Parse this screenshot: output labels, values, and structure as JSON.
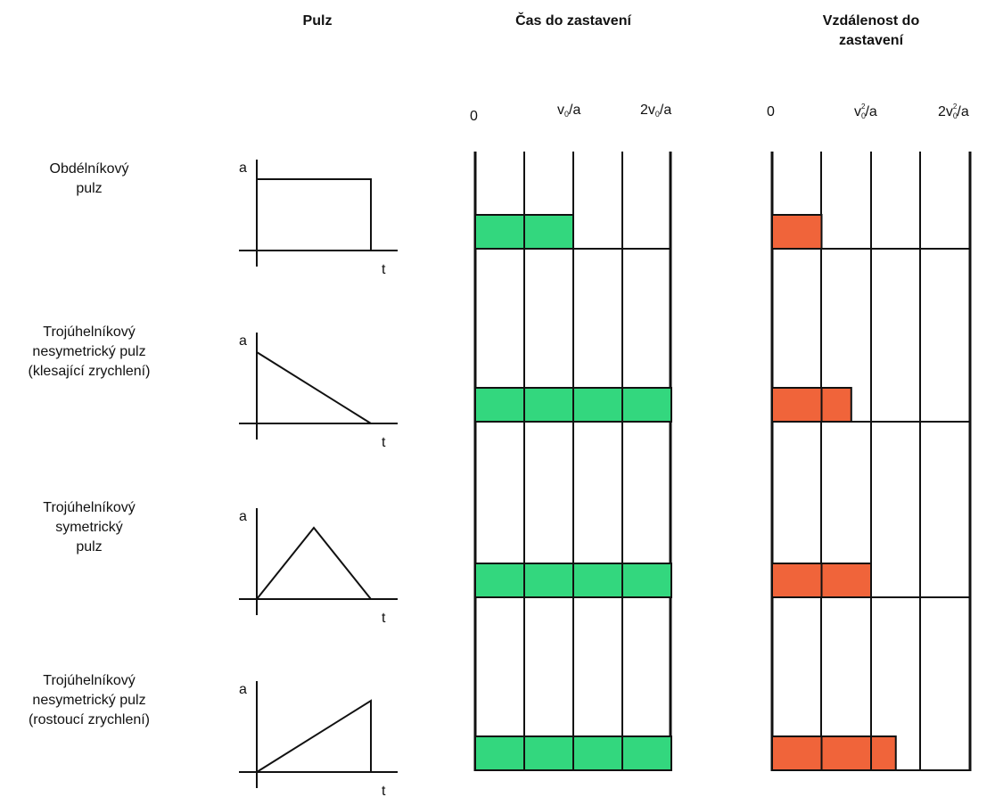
{
  "headers": {
    "pulse": "Pulz",
    "time": "Čas do zastavení",
    "distance_line1": "Vzdálenost do",
    "distance_line2": "zastavení"
  },
  "time_ticks": [
    {
      "main": "0",
      "sub": ""
    },
    {
      "main": "v",
      "sub": "0",
      "tail": "/a"
    },
    {
      "main": "2v",
      "sub": "0",
      "tail": "/a"
    }
  ],
  "distance_ticks": [
    {
      "main": "0",
      "sub": "",
      "sup": ""
    },
    {
      "main": "v",
      "sub": "0",
      "sup": "2",
      "tail": "/a"
    },
    {
      "main": "2v",
      "sub": "0",
      "sup": "2",
      "tail": "/a"
    }
  ],
  "pulse_axis": {
    "y": "a",
    "x": "t"
  },
  "colors": {
    "time_bar": "#33d77e",
    "distance_bar": "#f0643a",
    "line": "#111111"
  },
  "rows": [
    {
      "label_lines": [
        "Obdélníkový",
        "pulz"
      ],
      "shape": "rectangle",
      "time_to_stop": 1.0,
      "distance_to_stop": 0.5
    },
    {
      "label_lines": [
        "Trojúhelníkový",
        "nesymetrický pulz",
        "(klesající zrychlení)"
      ],
      "shape": "triangle-decreasing",
      "time_to_stop": 2.0,
      "distance_to_stop": 0.8
    },
    {
      "label_lines": [
        "Trojúhelníkový",
        "symetrický",
        "pulz"
      ],
      "shape": "triangle-symmetric",
      "time_to_stop": 2.0,
      "distance_to_stop": 1.0
    },
    {
      "label_lines": [
        "Trojúhelníkový",
        "nesymetrický pulz",
        "(rostoucí zrychlení)"
      ],
      "shape": "triangle-increasing",
      "time_to_stop": 2.0,
      "distance_to_stop": 1.25
    }
  ]
}
